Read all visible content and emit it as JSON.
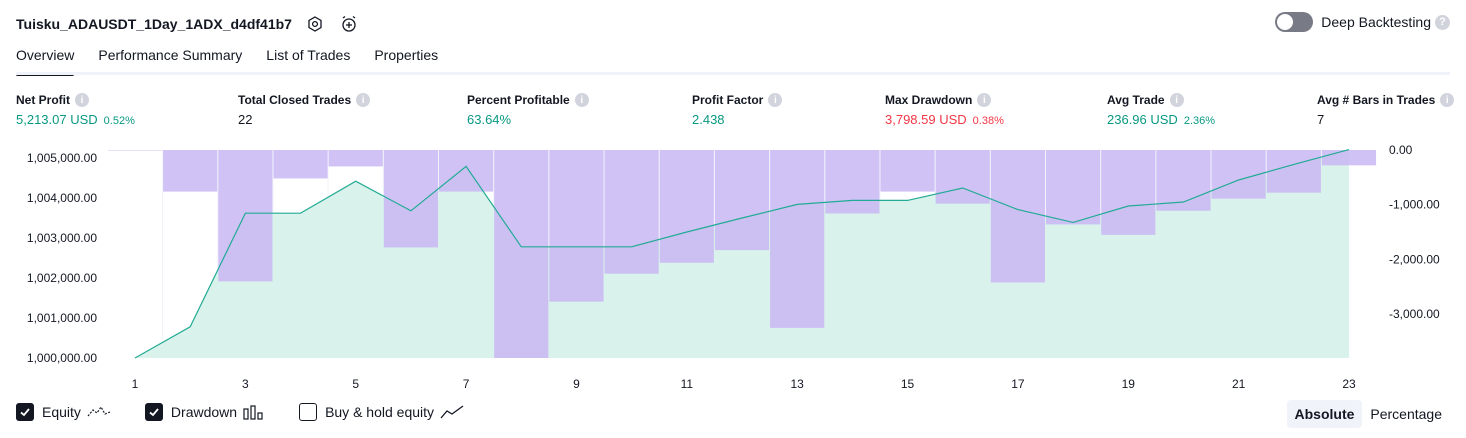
{
  "header": {
    "title": "Tuisku_ADAUSDT_1Day_1ADX_d4df41b7",
    "settings_icon": "settings-hexagon-icon",
    "alert_icon": "alarm-clock-plus-icon"
  },
  "deep_backtesting": {
    "label": "Deep Backtesting",
    "enabled": false,
    "help": "?"
  },
  "tabs": [
    {
      "label": "Overview",
      "active": true
    },
    {
      "label": "Performance Summary",
      "active": false
    },
    {
      "label": "List of Trades",
      "active": false
    },
    {
      "label": "Properties",
      "active": false
    }
  ],
  "metrics": [
    {
      "label": "Net Profit",
      "value": "5,213.07 USD",
      "pct": "0.52%",
      "tone": "pos"
    },
    {
      "label": "Total Closed Trades",
      "value": "22",
      "pct": "",
      "tone": "neu"
    },
    {
      "label": "Percent Profitable",
      "value": "63.64%",
      "pct": "",
      "tone": "pos"
    },
    {
      "label": "Profit Factor",
      "value": "2.438",
      "pct": "",
      "tone": "pos"
    },
    {
      "label": "Max Drawdown",
      "value": "3,798.59 USD",
      "pct": "0.38%",
      "tone": "neg"
    },
    {
      "label": "Avg Trade",
      "value": "236.96 USD",
      "pct": "2.36%",
      "tone": "pos"
    },
    {
      "label": "Avg # Bars in Trades",
      "value": "7",
      "pct": "",
      "tone": "neu"
    }
  ],
  "chart_data": {
    "type": "area",
    "x": [
      1,
      2,
      3,
      4,
      5,
      6,
      7,
      8,
      9,
      10,
      11,
      12,
      13,
      14,
      15,
      16,
      17,
      18,
      19,
      20,
      21,
      22,
      23
    ],
    "x_ticks": [
      "1",
      "3",
      "5",
      "7",
      "9",
      "11",
      "13",
      "15",
      "17",
      "19",
      "21",
      "23"
    ],
    "series": [
      {
        "name": "Equity",
        "type": "area",
        "color": "#22ab94",
        "fill": "#d9f2ec",
        "values": [
          1000000,
          1000780,
          1003620,
          1003620,
          1004420,
          1003680,
          1004790,
          1002780,
          1002780,
          1002780,
          1003150,
          1003500,
          1003840,
          1003940,
          1003940,
          1004250,
          1003710,
          1003390,
          1003800,
          1003900,
          1004450,
          1004840,
          1005210
        ]
      },
      {
        "name": "Drawdown",
        "type": "bar",
        "color": "#c9b7f5",
        "values": [
          0,
          -760,
          -2400,
          -520,
          -300,
          -1780,
          -760,
          -3800,
          -2770,
          -2260,
          -2060,
          -1830,
          -3250,
          -1160,
          -760,
          -980,
          -2420,
          -1360,
          -1550,
          -1110,
          -890,
          -780,
          -280
        ]
      }
    ],
    "left_axis": {
      "ticks": [
        "1,000,000.00",
        "1,001,000.00",
        "1,002,000.00",
        "1,003,000.00",
        "1,004,000.00",
        "1,005,000.00"
      ],
      "min": 1000000,
      "max": 1005200
    },
    "right_axis": {
      "ticks": [
        "0.00",
        "-1,000.00",
        "-2,000.00",
        "-3,000.00"
      ],
      "min": -3800,
      "max": 0
    },
    "grid": "vertical"
  },
  "legend": [
    {
      "label": "Equity",
      "checked": true,
      "icon": "equity-line-icon"
    },
    {
      "label": "Drawdown",
      "checked": true,
      "icon": "drawdown-bars-icon"
    },
    {
      "label": "Buy & hold equity",
      "checked": false,
      "icon": "trend-line-icon"
    }
  ],
  "modes": [
    {
      "label": "Absolute",
      "active": true
    },
    {
      "label": "Percentage",
      "active": false
    }
  ]
}
